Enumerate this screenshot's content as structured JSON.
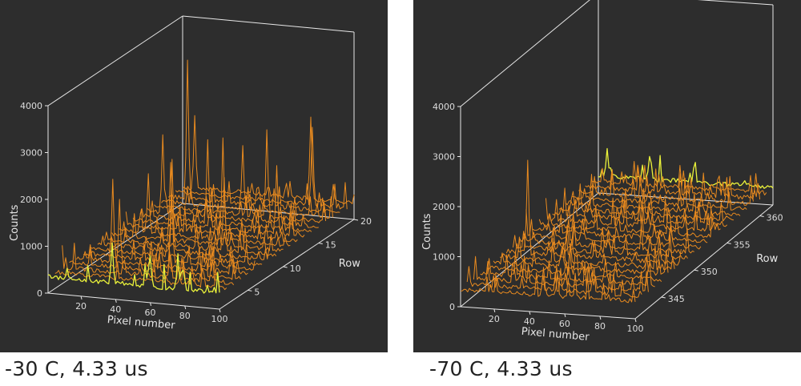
{
  "chart_data": [
    {
      "type": "line",
      "chart_kind": "3D waterfall (stacked spectra per row)",
      "caption": "-30 C, 4.33 us",
      "xlabel": "Pixel number",
      "ylabel": "Counts",
      "zlabel": "Row",
      "x_ticks": [
        "20",
        "40",
        "60",
        "80",
        "100"
      ],
      "y_ticks": [
        "0",
        "1000",
        "2000",
        "3000",
        "4000"
      ],
      "row_ticks": [
        "5",
        "10",
        "15",
        "20"
      ],
      "xlim": [
        1,
        100
      ],
      "ylim": [
        0,
        4000
      ],
      "row_range": [
        1,
        20
      ],
      "baseline_counts": 350,
      "peaks": [
        {
          "row": 1,
          "pixel": 38,
          "counts": 1200
        },
        {
          "row": 1,
          "pixel": 60,
          "counts": 1000
        },
        {
          "row": 1,
          "pixel": 76,
          "counts": 1100
        },
        {
          "row": 4,
          "pixel": 30,
          "counts": 1800
        },
        {
          "row": 5,
          "pixel": 22,
          "counts": 2100
        },
        {
          "row": 6,
          "pixel": 52,
          "counts": 1700
        },
        {
          "row": 8,
          "pixel": 44,
          "counts": 2300
        },
        {
          "row": 9,
          "pixel": 70,
          "counts": 1900
        },
        {
          "row": 10,
          "pixel": 35,
          "counts": 2000
        },
        {
          "row": 11,
          "pixel": 18,
          "counts": 1600
        },
        {
          "row": 12,
          "pixel": 57,
          "counts": 2400
        },
        {
          "row": 13,
          "pixel": 84,
          "counts": 1800
        },
        {
          "row": 14,
          "pixel": 40,
          "counts": 2100
        },
        {
          "row": 15,
          "pixel": 10,
          "counts": 2000
        },
        {
          "row": 16,
          "pixel": 66,
          "counts": 2200
        },
        {
          "row": 17,
          "pixel": 48,
          "counts": 1700
        },
        {
          "row": 18,
          "pixel": 12,
          "counts": 3300
        },
        {
          "row": 19,
          "pixel": 80,
          "counts": 2000
        },
        {
          "row": 20,
          "pixel": 8,
          "counts": 1900
        },
        {
          "row": 20,
          "pixel": 75,
          "counts": 2100
        }
      ]
    },
    {
      "type": "line",
      "chart_kind": "3D waterfall (stacked spectra per row)",
      "caption": "-70 C, 4.33 us",
      "xlabel": "Pixel number",
      "ylabel": "Counts",
      "zlabel": "Row",
      "x_ticks": [
        "20",
        "40",
        "60",
        "80",
        "100"
      ],
      "y_ticks": [
        "0",
        "1000",
        "2000",
        "3000",
        "4000"
      ],
      "row_ticks": [
        "345",
        "350",
        "355",
        "360"
      ],
      "xlim": [
        1,
        100
      ],
      "ylim": [
        0,
        4000
      ],
      "row_range": [
        341,
        362
      ],
      "baseline_counts": 350,
      "peaks": [
        {
          "row": 341,
          "pixel": 48,
          "counts": 900
        },
        {
          "row": 343,
          "pixel": 28,
          "counts": 700
        },
        {
          "row": 344,
          "pixel": 72,
          "counts": 800
        },
        {
          "row": 346,
          "pixel": 40,
          "counts": 750
        },
        {
          "row": 347,
          "pixel": 85,
          "counts": 700
        },
        {
          "row": 348,
          "pixel": 13,
          "counts": 2200
        },
        {
          "row": 349,
          "pixel": 55,
          "counts": 800
        },
        {
          "row": 351,
          "pixel": 33,
          "counts": 750
        },
        {
          "row": 353,
          "pixel": 65,
          "counts": 700
        },
        {
          "row": 355,
          "pixel": 22,
          "counts": 650
        },
        {
          "row": 357,
          "pixel": 78,
          "counts": 700
        },
        {
          "row": 360,
          "pixel": 45,
          "counts": 650
        },
        {
          "row": 362,
          "pixel": 6,
          "counts": 900
        },
        {
          "row": 362,
          "pixel": 30,
          "counts": 800
        }
      ]
    }
  ]
}
